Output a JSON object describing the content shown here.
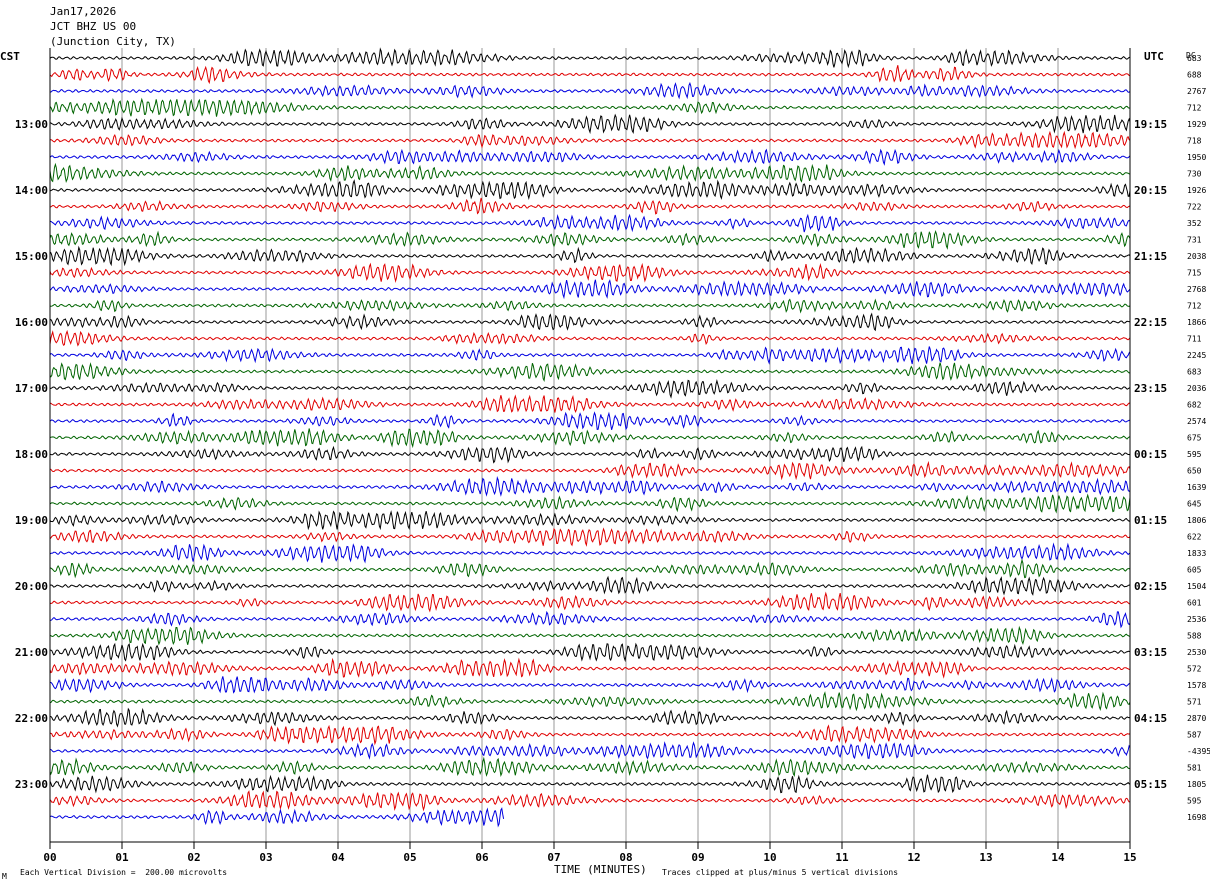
{
  "header": {
    "date": "Jan17,2026",
    "station": "JCT BHZ US 00",
    "location": "(Junction City, TX)"
  },
  "chart_data": {
    "type": "line",
    "title": "JCT BHZ US 00",
    "xlabel": "TIME (MINUTES)",
    "x_ticks": [
      "00",
      "01",
      "02",
      "03",
      "04",
      "05",
      "06",
      "07",
      "08",
      "09",
      "10",
      "11",
      "12",
      "13",
      "14",
      "15"
    ],
    "xlim": [
      0,
      15
    ],
    "left_axis_label": "CST",
    "right_axis_label": "UTC",
    "right_top_label": "DC",
    "rows_per_hour": 4,
    "row_minutes": 15,
    "color_cycle": [
      "#000000",
      "#e00000",
      "#0000e0",
      "#006400"
    ],
    "left_hour_labels": [
      "13:00",
      "14:00",
      "15:00",
      "16:00",
      "17:00",
      "18:00",
      "19:00",
      "20:00",
      "21:00",
      "22:00",
      "23:00"
    ],
    "right_hour_labels": [
      "19:15",
      "20:15",
      "21:15",
      "22:15",
      "23:15",
      "00:15",
      "01:15",
      "02:15",
      "03:15",
      "04:15",
      "05:15"
    ],
    "dc_offsets": [
      "683",
      "688",
      "2767",
      "712",
      "1929",
      "718",
      "1950",
      "730",
      "1926",
      "722",
      "352",
      "731",
      "2038",
      "715",
      "2768",
      "712",
      "1866",
      "711",
      "2245",
      "683",
      "2036",
      "682",
      "2574",
      "675",
      "595",
      "650",
      "1639",
      "645",
      "1806",
      "622",
      "1833",
      "605",
      "1504",
      "601",
      "2536",
      "588",
      "2530",
      "572",
      "1578",
      "571",
      "2870",
      "587",
      "-4395",
      "581",
      "1805",
      "595",
      "1698"
    ],
    "trace_count": 47,
    "last_trace_end_minute": 6.3,
    "event": {
      "row": 44,
      "start_minute": 11.8,
      "end_minute": 12.7,
      "label": ""
    },
    "scale_note": "Each Vertical Division =  200.00 microvolts",
    "clip_note": "Traces clipped at plus/minus 5 vertical divisions",
    "corner_mark": "M"
  }
}
